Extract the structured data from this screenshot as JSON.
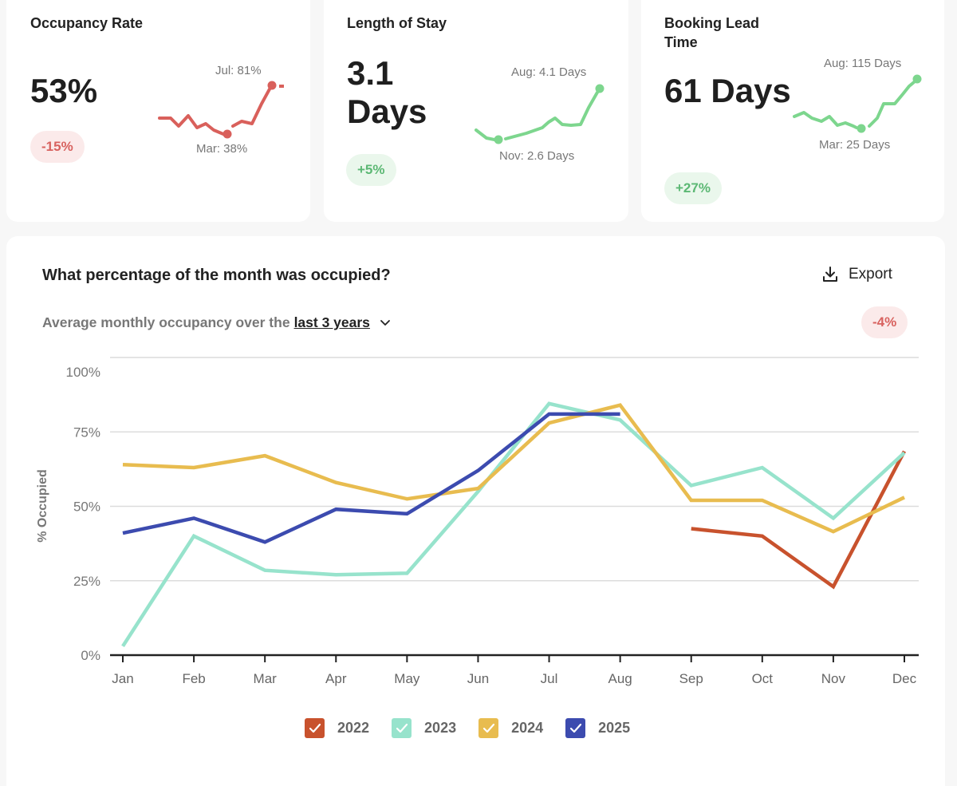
{
  "kpis": [
    {
      "title": "Occupancy Rate",
      "value": "53%",
      "change": "-15%",
      "change_direction": "negative",
      "spark_color": "#d9605b",
      "spark_high_label": "Jul: 81%",
      "spark_low_label": "Mar: 38%"
    },
    {
      "title": "Length of Stay",
      "value": "3.1 Days",
      "change": "+5%",
      "change_direction": "positive",
      "spark_color": "#7dd68e",
      "spark_high_label": "Aug: 4.1 Days",
      "spark_low_label": "Nov: 2.6 Days"
    },
    {
      "title": "Booking Lead Time",
      "value": "61 Days",
      "change": "+27%",
      "change_direction": "positive",
      "spark_color": "#7dd68e",
      "spark_high_label": "Aug: 115 Days",
      "spark_low_label": "Mar: 25 Days"
    }
  ],
  "main": {
    "title": "What percentage of the month was occupied?",
    "export_label": "Export",
    "subtitle_prefix": "Average monthly occupancy over the",
    "period_link": "last 3 years",
    "change": "-4%"
  },
  "colors": {
    "negative": "#d8625f",
    "positive": "#5cb874"
  },
  "chart_data": {
    "type": "line",
    "title": "What percentage of the month was occupied?",
    "xlabel": "",
    "ylabel": "% Occupied",
    "categories": [
      "Jan",
      "Feb",
      "Mar",
      "Apr",
      "May",
      "Jun",
      "Jul",
      "Aug",
      "Sep",
      "Oct",
      "Nov",
      "Dec"
    ],
    "yticks": [
      "0%",
      "25%",
      "50%",
      "75%",
      "100%"
    ],
    "ylim": [
      0,
      100
    ],
    "grid": true,
    "legend_position": "bottom-center",
    "series": [
      {
        "name": "2022",
        "color": "#c8522d",
        "checked": true,
        "values": [
          null,
          null,
          null,
          null,
          null,
          null,
          null,
          null,
          42.5,
          40,
          23,
          68.5
        ]
      },
      {
        "name": "2023",
        "color": "#97e3cc",
        "checked": true,
        "values": [
          3,
          40,
          28.5,
          27,
          27.5,
          55,
          84.5,
          79,
          57,
          63,
          46,
          68
        ]
      },
      {
        "name": "2024",
        "color": "#e8bc4f",
        "checked": true,
        "values": [
          64,
          63,
          67,
          58,
          52.5,
          56,
          78,
          84,
          52,
          52,
          41.5,
          53
        ]
      },
      {
        "name": "2025",
        "color": "#3c4baf",
        "checked": true,
        "values": [
          41,
          46,
          38,
          49,
          47.5,
          62,
          81,
          81,
          null,
          null,
          null,
          null
        ]
      }
    ]
  }
}
